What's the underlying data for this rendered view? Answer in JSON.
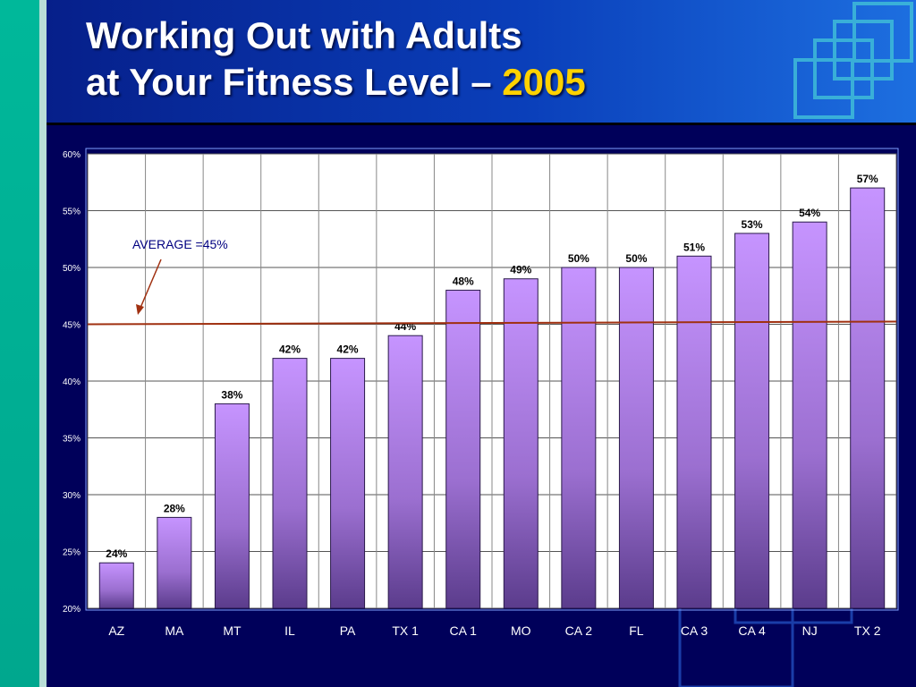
{
  "slide": {
    "title_line1": "Working Out with Adults",
    "title_line2_prefix": "at Your Fitness Level – ",
    "title_year": "2005"
  },
  "colors": {
    "background": "#00005a",
    "bar": "#c694ff",
    "average_line": "#a03010",
    "accent_year": "#ffd200"
  },
  "chart_data": {
    "type": "bar",
    "categories": [
      "AZ",
      "MA",
      "MT",
      "IL",
      "PA",
      "TX 1",
      "CA 1",
      "MO",
      "CA 2",
      "FL",
      "CA 3",
      "CA 4",
      "NJ",
      "TX 2"
    ],
    "values": [
      24,
      28,
      38,
      42,
      42,
      44,
      48,
      49,
      50,
      50,
      51,
      53,
      54,
      57
    ],
    "value_labels": [
      "24%",
      "28%",
      "38%",
      "42%",
      "42%",
      "44%",
      "48%",
      "49%",
      "50%",
      "50%",
      "51%",
      "53%",
      "54%",
      "57%"
    ],
    "ylim": [
      20,
      60
    ],
    "yticks": [
      20,
      25,
      30,
      35,
      40,
      45,
      50,
      55,
      60
    ],
    "ytick_labels": [
      "20%",
      "25%",
      "30%",
      "35%",
      "40%",
      "45%",
      "50%",
      "55%",
      "60%"
    ],
    "grid": true,
    "average": {
      "value": 45,
      "label": "AVERAGE =45%"
    }
  }
}
